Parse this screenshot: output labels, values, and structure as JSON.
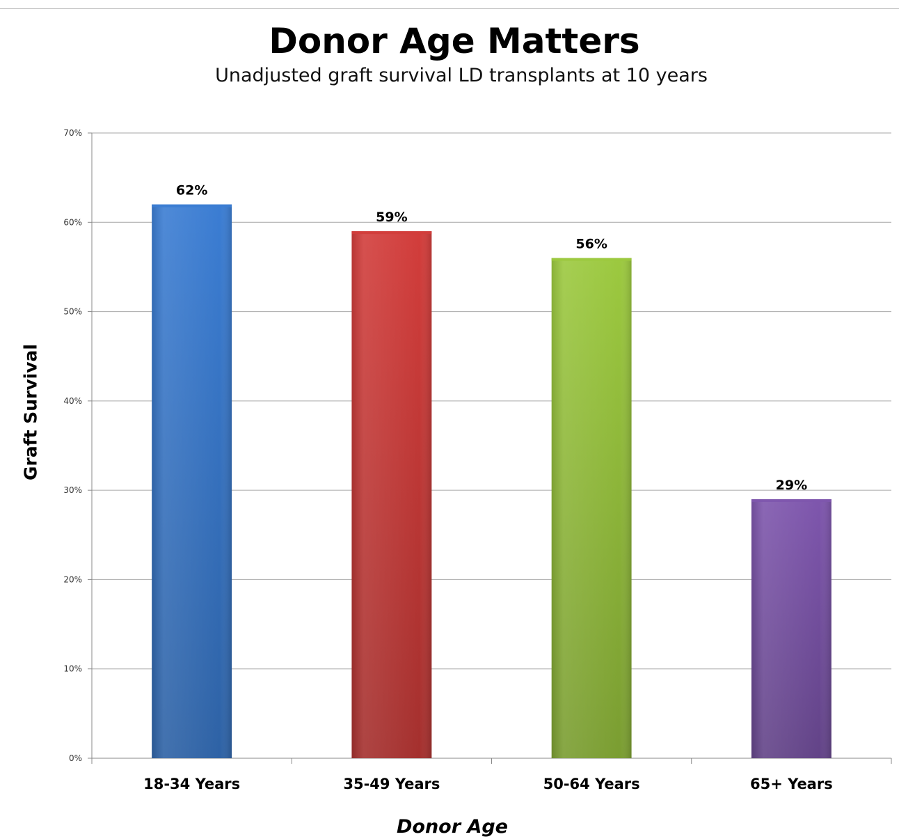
{
  "chart_data": {
    "type": "bar",
    "title": "Donor Age Matters",
    "subtitle": "Unadjusted graft survival LD transplants at 10 years",
    "xlabel": "Donor Age",
    "ylabel": "Graft Survival",
    "categories": [
      "18-34 Years",
      "35-49 Years",
      "50-64 Years",
      "65+ Years"
    ],
    "values": [
      62,
      59,
      56,
      29
    ],
    "data_labels": [
      "62%",
      "59%",
      "56%",
      "29%"
    ],
    "colors": [
      "#3b7dd3",
      "#d23d3b",
      "#9cc93f",
      "#7e56ad"
    ],
    "ylim": [
      0,
      70
    ],
    "yticks": [
      "0%",
      "10%",
      "20%",
      "30%",
      "40%",
      "50%",
      "60%",
      "70%"
    ],
    "grid": true,
    "legend": "none"
  }
}
